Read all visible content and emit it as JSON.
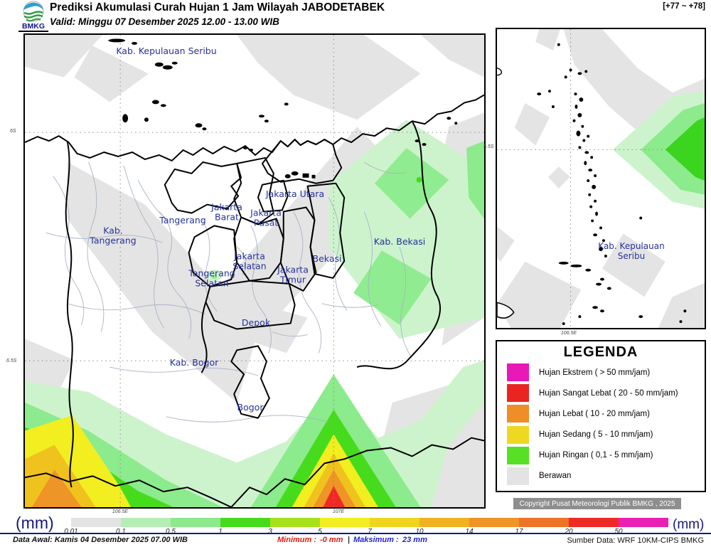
{
  "header": {
    "logo_text": "BMKG",
    "title": "Prediksi Akumulasi Curah Hujan 1 Jam Wilayah JABODETABEK",
    "valid": "Valid: Minggu 07 Desember 2025 12.00 - 13.00 WIB",
    "forecast_hours": "[+77 ~ +78]"
  },
  "map": {
    "labels": {
      "seribu": "Kab. Kepulauan Seribu",
      "kab_tangerang": "Kab.\nTangerang",
      "tangerang": "Tangerang",
      "jakarta_barat": "Jakarta\nBarat",
      "jakarta_utara": "Jakarta Utara",
      "jakarta_pusat": "Jakarta\nPusat",
      "jakarta_selatan": "Jakarta\nSelatan",
      "jakarta_timur": "Jakarta\nTimur",
      "tangerang_selatan": "Tangerang\nSelatan",
      "bekasi": "Bekasi",
      "kab_bekasi": "Kab. Bekasi",
      "depok": "Depok",
      "kab_bogor": "Kab. Bogor",
      "bogor": "Bogor"
    },
    "axis": {
      "lat1": "6S",
      "lat2": "6.5S",
      "lon1": "106.5E",
      "lon2": "107E"
    }
  },
  "inset": {
    "label": "Kab. Kepulauan Seribu",
    "lat": "5.5S",
    "lon": "106.5E"
  },
  "legend": {
    "title": "LEGENDA",
    "items": [
      {
        "label": "Hujan Ekstrem ( > 50 mm/jam)",
        "color": "#e819b6"
      },
      {
        "label": "Hujan Sangat Lebat ( 20 - 50 mm/jam)",
        "color": "#ea2521"
      },
      {
        "label": "Hujan Lebat ( 10 - 20 mm/jam)",
        "color": "#ef8d26"
      },
      {
        "label": "Hujan Sedang ( 5 - 10 mm/jam)",
        "color": "#efd821"
      },
      {
        "label": "Hujan Ringan ( 0,1 - 5 mm/jam)",
        "color": "#58e026"
      },
      {
        "label": "Berawan",
        "color": "#e3e3e3"
      }
    ]
  },
  "copyright": "Copyright Pusat Meteorologi Publik BMKG , 2025",
  "colorbar": {
    "unit_left": "(mm)",
    "unit_right": "(mm)",
    "ticks": [
      "0.01",
      "0.1",
      "0.5",
      "1",
      "3",
      "5",
      "7",
      "10",
      "14",
      "17",
      "20",
      "50"
    ],
    "colors": [
      "#e3e3e3",
      "#b5eeb5",
      "#8ce98c",
      "#46dc1d",
      "#a8e11c",
      "#f2ee20",
      "#f0d51f",
      "#efb322",
      "#ef9426",
      "#ed7327",
      "#ee2a24",
      "#ea1fb4"
    ]
  },
  "footer": {
    "data_awal": "Data Awal: Kamis 04 Desember 2025 07.00 WIB",
    "min_label": "Minimum :",
    "min_value": "-0 mm",
    "separator": "|",
    "max_label": "Maksimum :",
    "max_value": "23 mm",
    "sumber": "Sumber Data: WRF 10KM-CIPS BMKG"
  }
}
